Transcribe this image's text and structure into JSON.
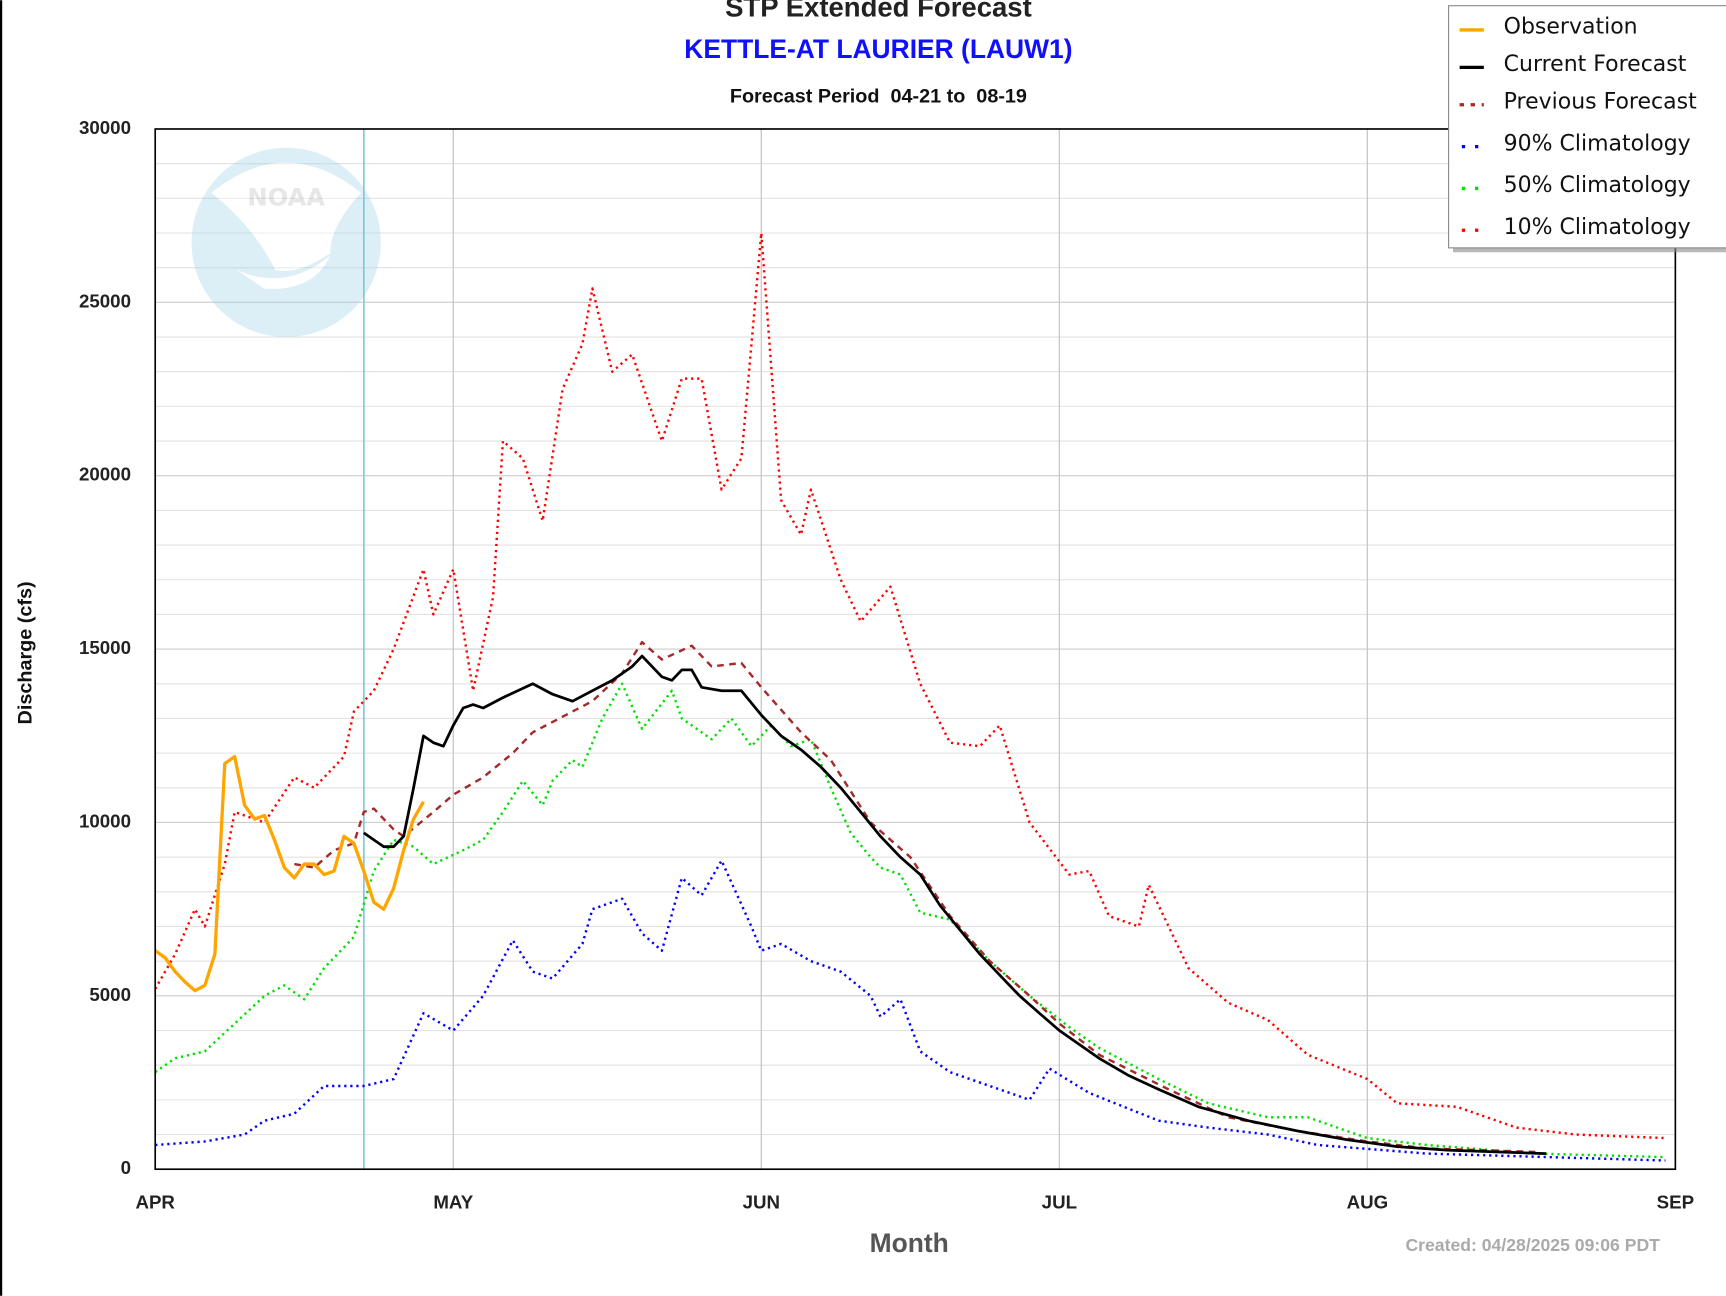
{
  "chart_data": {
    "type": "line",
    "title": "STP Extended Forecast",
    "subtitle": "KETTLE-AT LAURIER (LAUW1)",
    "period": "Forecast Period  04-21 to  08-19",
    "created": "Created: 04/28/2025 09:06 PDT",
    "x_label": "Month",
    "y_label": "Discharge (cfs)",
    "xlim": [
      0,
      153
    ],
    "xticks": [
      {
        "value": 0,
        "label": "APR"
      },
      {
        "value": 30,
        "label": "MAY"
      },
      {
        "value": 61,
        "label": "JUN"
      },
      {
        "value": 91,
        "label": "JUL"
      },
      {
        "value": 122,
        "label": "AUG"
      },
      {
        "value": 153,
        "label": "SEP"
      }
    ],
    "ylim": [
      0,
      30000
    ],
    "yticks": [
      0,
      5000,
      10000,
      15000,
      20000,
      25000,
      30000
    ],
    "minor_grid": 1000,
    "grid": true,
    "legend": "upper right",
    "marker_x": 21,
    "marker_color": "#7ec8d8",
    "series": [
      {
        "name": "Observation",
        "color": "#ffa500",
        "style": "solid",
        "x": [
          0,
          1,
          2,
          3,
          4,
          5,
          6,
          7,
          8,
          9,
          10,
          11,
          12,
          13,
          14,
          15,
          16,
          17,
          18,
          19,
          20,
          21,
          22,
          23,
          24,
          25,
          26,
          27
        ],
        "values": [
          6300,
          6100,
          5700,
          5400,
          5150,
          5300,
          6200,
          11700,
          11900,
          10500,
          10100,
          10200,
          9500,
          8700,
          8400,
          8800,
          8800,
          8500,
          8600,
          9600,
          9400,
          8600,
          7700,
          7500,
          8100,
          9200,
          10100,
          10600
        ]
      },
      {
        "name": "Current Forecast",
        "color": "#000000",
        "style": "solid",
        "x": [
          21,
          23,
          24,
          25,
          26,
          27,
          28,
          29,
          30,
          31,
          32,
          33,
          35,
          38,
          40,
          42,
          44,
          46,
          48,
          49,
          51,
          52,
          53,
          54,
          55,
          57,
          59,
          61,
          63,
          65,
          67,
          69,
          71,
          73,
          75,
          77,
          79,
          81,
          83,
          85,
          87,
          89,
          91,
          93,
          95,
          98,
          101,
          105,
          110,
          115,
          120,
          125,
          130,
          135,
          140
        ],
        "values": [
          9700,
          9300,
          9300,
          9600,
          11000,
          12500,
          12300,
          12200,
          12800,
          13300,
          13400,
          13300,
          13600,
          14000,
          13700,
          13500,
          13800,
          14100,
          14500,
          14800,
          14200,
          14100,
          14400,
          14400,
          13900,
          13800,
          13800,
          13100,
          12500,
          12100,
          11600,
          11000,
          10300,
          9600,
          9000,
          8500,
          7600,
          6900,
          6200,
          5600,
          5000,
          4500,
          4000,
          3600,
          3200,
          2700,
          2300,
          1800,
          1400,
          1100,
          850,
          650,
          550,
          500,
          450
        ]
      },
      {
        "name": "Previous Forecast",
        "color": "#a52a2a",
        "style": "dashed",
        "x": [
          14,
          16,
          18,
          20,
          21,
          22,
          24,
          25,
          28,
          30,
          33,
          36,
          38,
          42,
          44,
          47,
          49,
          51,
          54,
          56,
          59,
          61,
          65,
          68,
          72,
          76,
          80,
          84,
          88,
          91,
          95,
          102,
          108,
          115,
          122,
          128,
          139
        ],
        "values": [
          8800,
          8700,
          9200,
          9400,
          10300,
          10400,
          9800,
          9600,
          10300,
          10800,
          11300,
          12000,
          12600,
          13200,
          13500,
          14300,
          15200,
          14700,
          15100,
          14500,
          14600,
          13900,
          12600,
          11800,
          10000,
          9000,
          7300,
          6000,
          5000,
          4200,
          3300,
          2300,
          1500,
          1100,
          800,
          600,
          500
        ]
      },
      {
        "name": "90% Climatology",
        "color": "#0000ff",
        "style": "dotted",
        "x": [
          0,
          5,
          9,
          11,
          14,
          17,
          21,
          24,
          27,
          30,
          33,
          36,
          38,
          40,
          43,
          44,
          47,
          49,
          51,
          53,
          55,
          57,
          60,
          61,
          63,
          66,
          69,
          72,
          73,
          75,
          77,
          80,
          84,
          88,
          90,
          94,
          101,
          106,
          112,
          117,
          128,
          152
        ],
        "values": [
          700,
          800,
          1000,
          1400,
          1600,
          2400,
          2400,
          2600,
          4500,
          4000,
          5000,
          6600,
          5700,
          5500,
          6500,
          7500,
          7800,
          6800,
          6300,
          8400,
          7900,
          8900,
          7000,
          6300,
          6500,
          6000,
          5700,
          5000,
          4400,
          4900,
          3400,
          2800,
          2400,
          2000,
          2900,
          2200,
          1400,
          1200,
          1000,
          700,
          450,
          250
        ]
      },
      {
        "name": "50% Climatology",
        "color": "#00e000",
        "style": "dotted",
        "x": [
          0,
          2,
          5,
          8,
          11,
          13,
          15,
          17,
          20,
          22,
          24,
          26,
          28,
          31,
          33,
          35,
          37,
          39,
          40,
          42,
          43,
          45,
          47,
          49,
          52,
          53,
          56,
          58,
          60,
          62,
          64,
          66,
          68,
          70,
          72,
          73,
          75,
          77,
          80,
          82,
          84,
          88,
          92,
          95,
          101,
          106,
          112,
          116,
          122,
          128,
          139,
          152
        ],
        "values": [
          2800,
          3200,
          3400,
          4200,
          5000,
          5300,
          4900,
          5800,
          6700,
          8600,
          9500,
          9300,
          8800,
          9200,
          9500,
          10300,
          11200,
          10500,
          11200,
          11800,
          11600,
          13000,
          14000,
          12700,
          13800,
          13000,
          12400,
          13000,
          12200,
          12800,
          12200,
          12400,
          11000,
          9700,
          9000,
          8700,
          8500,
          7400,
          7200,
          6600,
          6000,
          5000,
          4100,
          3500,
          2600,
          1900,
          1500,
          1500,
          900,
          700,
          450,
          350
        ]
      },
      {
        "name": "10% Climatology",
        "color": "#ff0000",
        "style": "dotted",
        "x": [
          0,
          2,
          4,
          5,
          7,
          8,
          11,
          14,
          16,
          19,
          20,
          22,
          24,
          27,
          28,
          30,
          32,
          34,
          35,
          37,
          39,
          41,
          43,
          44,
          46,
          48,
          51,
          53,
          55,
          57,
          59,
          61,
          63,
          65,
          66,
          69,
          71,
          74,
          77,
          80,
          83,
          85,
          88,
          92,
          94,
          96,
          99,
          100,
          104,
          108,
          112,
          116,
          122,
          125,
          131,
          137,
          143,
          152
        ],
        "values": [
          5200,
          6200,
          7500,
          7000,
          8800,
          10300,
          10000,
          11300,
          11000,
          11900,
          13200,
          13800,
          15000,
          17300,
          16000,
          17300,
          13800,
          16500,
          21000,
          20500,
          18700,
          22500,
          23800,
          25400,
          23000,
          23500,
          21000,
          22800,
          22800,
          19600,
          20500,
          27000,
          19300,
          18300,
          19600,
          17000,
          15800,
          16800,
          14000,
          12300,
          12200,
          12800,
          10000,
          8500,
          8600,
          7300,
          7000,
          8200,
          5800,
          4800,
          4300,
          3300,
          2600,
          1900,
          1800,
          1200,
          1000,
          900
        ]
      }
    ]
  }
}
